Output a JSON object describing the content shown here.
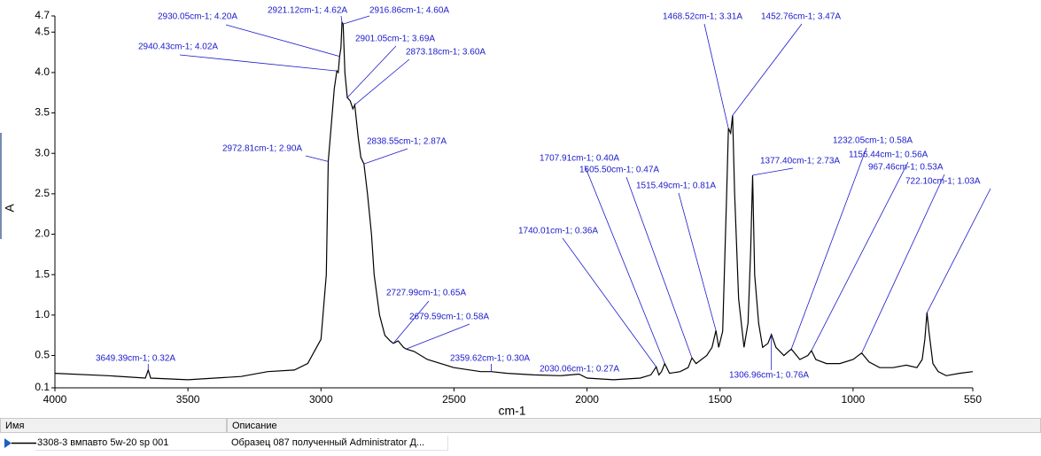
{
  "chart_data": {
    "type": "line",
    "xlabel": "cm-1",
    "ylabel": "A",
    "xlim": [
      4000,
      550
    ],
    "ylim": [
      0.1,
      4.7
    ],
    "xticks": [
      4000,
      3500,
      3000,
      2500,
      2000,
      1500,
      1000,
      550
    ],
    "yticks": [
      0.1,
      0.5,
      {
        "value": 1,
        "label": "1.0"
      },
      1.5,
      {
        "value": 2,
        "label": "2.0"
      },
      2.5,
      {
        "value": 3,
        "label": "3.0"
      },
      3.5,
      {
        "value": 4,
        "label": "4.0"
      },
      4.5,
      4.7
    ],
    "grid": false,
    "series": [
      {
        "color": "#000000",
        "x": [
          4000,
          3800,
          3660,
          3649.39,
          3640,
          3500,
          3300,
          3200,
          3100,
          3050,
          3000,
          2980,
          2972.81,
          2960,
          2950,
          2940.43,
          2935,
          2930.05,
          2925,
          2921.12,
          2916.86,
          2910,
          2901.05,
          2890,
          2880,
          2873.18,
          2860,
          2850,
          2838.55,
          2825,
          2810,
          2800,
          2780,
          2760,
          2740,
          2727.99,
          2710,
          2690,
          2679.59,
          2650,
          2600,
          2500,
          2400,
          2359.62,
          2300,
          2200,
          2100,
          2030.06,
          2000,
          1900,
          1800,
          1760,
          1740.01,
          1730,
          1720,
          1707.91,
          1690,
          1650,
          1620,
          1605.5,
          1590,
          1550,
          1530,
          1515.49,
          1505,
          1490,
          1475,
          1468.52,
          1460,
          1452.76,
          1445,
          1430,
          1410,
          1395,
          1385,
          1377.4,
          1370,
          1355,
          1340,
          1320,
          1306.96,
          1290,
          1260,
          1232.05,
          1200,
          1170,
          1156.44,
          1140,
          1100,
          1050,
          1000,
          967.46,
          940,
          900,
          850,
          800,
          760,
          740,
          730,
          722.1,
          715,
          700,
          680,
          650,
          600,
          550
        ],
        "values": [
          0.28,
          0.25,
          0.22,
          0.32,
          0.22,
          0.2,
          0.24,
          0.3,
          0.32,
          0.4,
          0.7,
          1.5,
          2.9,
          3.4,
          3.8,
          4.02,
          4.0,
          4.2,
          4.3,
          4.62,
          4.6,
          4.0,
          3.69,
          3.65,
          3.55,
          3.6,
          3.2,
          2.95,
          2.87,
          2.5,
          2.0,
          1.5,
          1.0,
          0.75,
          0.68,
          0.65,
          0.68,
          0.6,
          0.58,
          0.55,
          0.45,
          0.35,
          0.3,
          0.3,
          0.28,
          0.26,
          0.25,
          0.27,
          0.22,
          0.2,
          0.22,
          0.26,
          0.36,
          0.26,
          0.3,
          0.4,
          0.28,
          0.3,
          0.35,
          0.47,
          0.4,
          0.5,
          0.6,
          0.81,
          0.6,
          0.8,
          2.5,
          3.31,
          3.25,
          3.47,
          2.5,
          1.2,
          0.6,
          0.9,
          1.8,
          2.73,
          1.5,
          0.9,
          0.6,
          0.65,
          0.76,
          0.6,
          0.5,
          0.58,
          0.45,
          0.5,
          0.56,
          0.45,
          0.4,
          0.4,
          0.45,
          0.53,
          0.42,
          0.35,
          0.35,
          0.38,
          0.35,
          0.45,
          0.7,
          1.03,
          0.8,
          0.4,
          0.3,
          0.25,
          0.28,
          0.3
        ]
      }
    ],
    "annotations": [
      {
        "x": 3649.39,
        "y": 0.32,
        "label": "3649.39cm-1; 0.32A"
      },
      {
        "x": 2940.43,
        "y": 4.02,
        "label": "2940.43cm-1; 4.02A"
      },
      {
        "x": 2930.05,
        "y": 4.2,
        "label": "2930.05cm-1; 4.20A"
      },
      {
        "x": 2921.12,
        "y": 4.62,
        "label": "2921.12cm-1; 4.62A"
      },
      {
        "x": 2916.86,
        "y": 4.6,
        "label": "2916.86cm-1; 4.60A"
      },
      {
        "x": 2901.05,
        "y": 3.69,
        "label": "2901.05cm-1; 3.69A"
      },
      {
        "x": 2873.18,
        "y": 3.6,
        "label": "2873.18cm-1; 3.60A"
      },
      {
        "x": 2972.81,
        "y": 2.9,
        "label": "2972.81cm-1; 2.90A"
      },
      {
        "x": 2838.55,
        "y": 2.87,
        "label": "2838.55cm-1; 2.87A"
      },
      {
        "x": 2727.99,
        "y": 0.65,
        "label": "2727.99cm-1; 0.65A"
      },
      {
        "x": 2679.59,
        "y": 0.58,
        "label": "2679.59cm-1; 0.58A"
      },
      {
        "x": 2359.62,
        "y": 0.3,
        "label": "2359.62cm-1; 0.30A"
      },
      {
        "x": 2030.06,
        "y": 0.27,
        "label": "2030.06cm-1; 0.27A"
      },
      {
        "x": 1740.01,
        "y": 0.36,
        "label": "1740.01cm-1; 0.36A"
      },
      {
        "x": 1707.91,
        "y": 0.4,
        "label": "1707.91cm-1; 0.40A"
      },
      {
        "x": 1605.5,
        "y": 0.47,
        "label": "1605.50cm-1; 0.47A"
      },
      {
        "x": 1515.49,
        "y": 0.81,
        "label": "1515.49cm-1; 0.81A"
      },
      {
        "x": 1468.52,
        "y": 3.31,
        "label": "1468.52cm-1; 3.31A"
      },
      {
        "x": 1452.76,
        "y": 3.47,
        "label": "1452.76cm-1; 3.47A"
      },
      {
        "x": 1377.4,
        "y": 2.73,
        "label": "1377.40cm-1; 2.73A"
      },
      {
        "x": 1306.96,
        "y": 0.76,
        "label": "1306.96cm-1; 0.76A"
      },
      {
        "x": 1232.05,
        "y": 0.58,
        "label": "1232.05cm-1; 0.58A"
      },
      {
        "x": 1156.44,
        "y": 0.56,
        "label": "1156.44cm-1; 0.56A"
      },
      {
        "x": 967.46,
        "y": 0.53,
        "label": "967.46cm-1; 0.53A"
      },
      {
        "x": 722.1,
        "y": 1.03,
        "label": "722.10cm-1; 1.03A"
      }
    ]
  },
  "table": {
    "columns": [
      "Имя",
      "Описание"
    ],
    "rows": [
      [
        "3308-3 вмпавто 5w-20 sp 001",
        "Образец 087 полученный Administrator Д..."
      ]
    ]
  }
}
